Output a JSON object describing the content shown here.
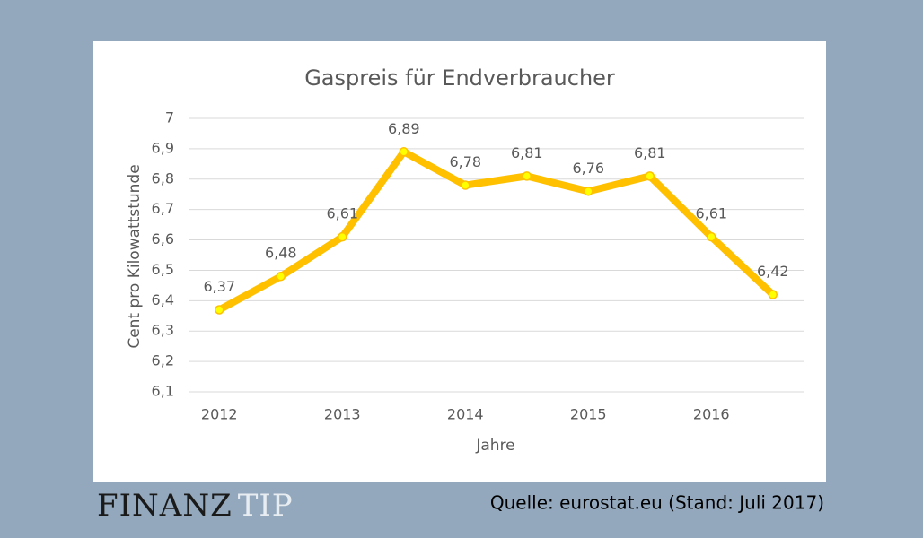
{
  "chart_data": {
    "type": "line",
    "title": "Gaspreis für Endverbraucher",
    "x_label": "Jahre",
    "y_label": "Cent pro Kilowattstunde",
    "categories": [
      "2012",
      null,
      "2013",
      null,
      "2014",
      null,
      "2015",
      null,
      "2016",
      null
    ],
    "series": [
      {
        "name": "Gaspreis",
        "color": "#ffc000",
        "values": [
          6.37,
          6.48,
          6.61,
          6.89,
          6.78,
          6.81,
          6.76,
          6.81,
          6.61,
          6.42
        ],
        "value_labels": [
          "6,37",
          "6,48",
          "6,61",
          "6,89",
          "6,78",
          "6,81",
          "6,76",
          "6,81",
          "6,61",
          "6,42"
        ]
      }
    ],
    "ylim": [
      6.1,
      7
    ],
    "yticks": [
      {
        "value": 6.1,
        "label": "6,1"
      },
      {
        "value": 6.2,
        "label": "6,2"
      },
      {
        "value": 6.3,
        "label": "6,3"
      },
      {
        "value": 6.4,
        "label": "6,4"
      },
      {
        "value": 6.5,
        "label": "6,5"
      },
      {
        "value": 6.6,
        "label": "6,6"
      },
      {
        "value": 6.7,
        "label": "6,7"
      },
      {
        "value": 6.8,
        "label": "6,8"
      },
      {
        "value": 6.9,
        "label": "6,9"
      },
      7
    ],
    "grid": true
  },
  "footer": {
    "logo_bold": "FINANZ",
    "logo_light": "TIP",
    "source": "Quelle: eurostat.eu (Stand: Juli 2017)"
  }
}
